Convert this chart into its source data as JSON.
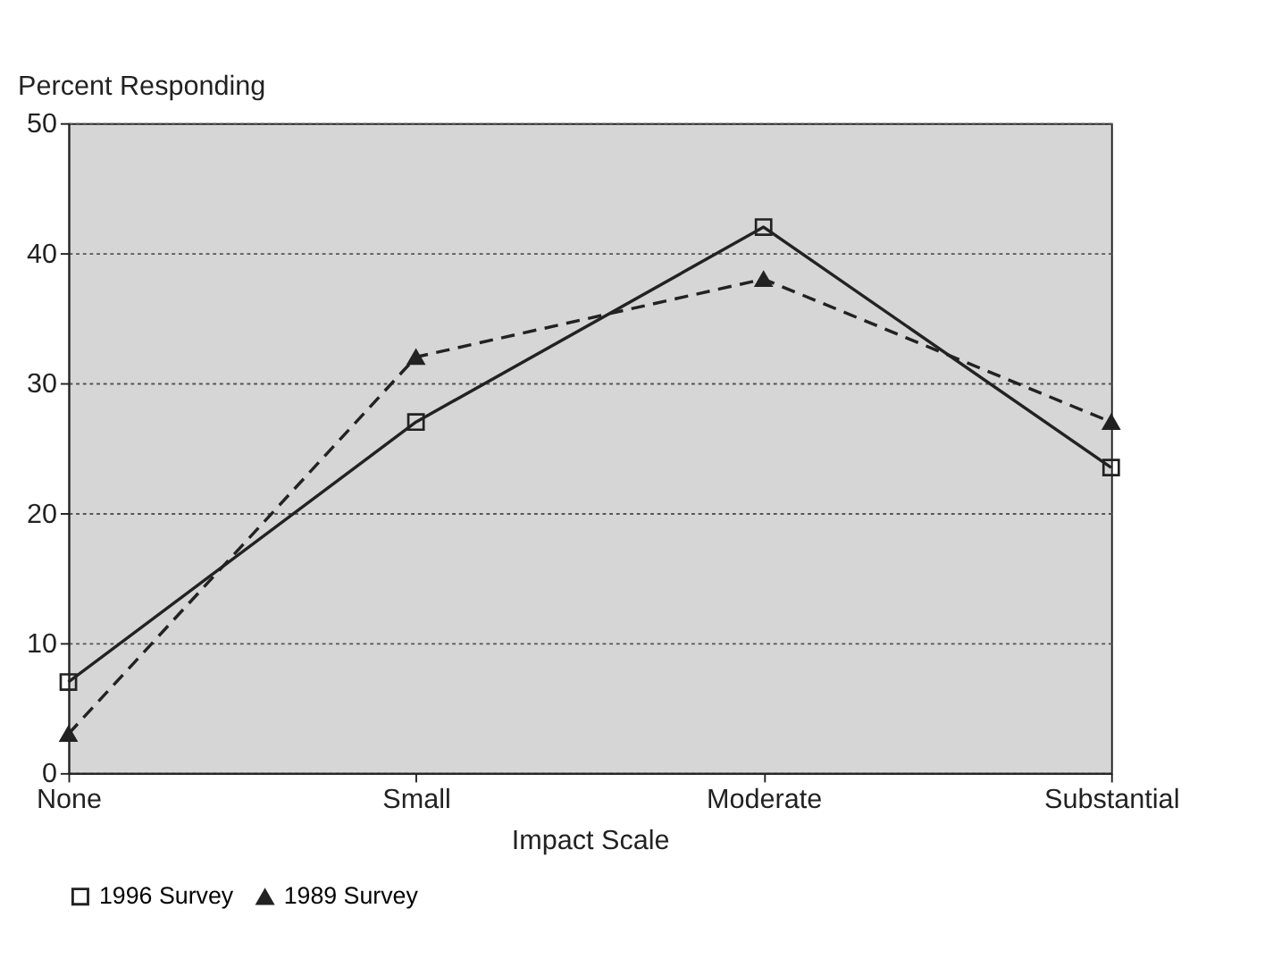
{
  "chart_data": {
    "type": "line",
    "xlabel": "Impact Scale",
    "ylabel": "Percent Responding",
    "categories": [
      "None",
      "Small",
      "Moderate",
      "Substantial"
    ],
    "series": [
      {
        "name": "1996 Survey",
        "color": "#222222",
        "values": [
          7,
          27,
          42,
          23.5
        ],
        "marker": "square",
        "line_style": "solid"
      },
      {
        "name": "1989 Survey",
        "color": "#222222",
        "values": [
          3,
          32,
          38,
          27
        ],
        "marker": "triangle",
        "line_style": "dashed"
      }
    ],
    "ylim": [
      0,
      50
    ],
    "yticks": [
      0,
      10,
      20,
      30,
      40,
      50
    ],
    "grid": "y",
    "legend": "bottom"
  }
}
